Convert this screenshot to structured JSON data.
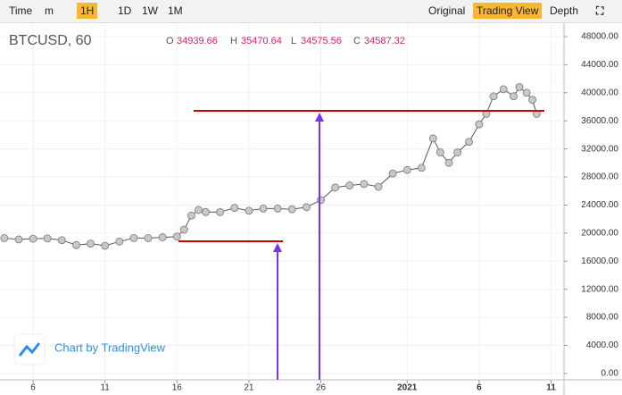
{
  "toolbar": {
    "left": [
      "Time",
      "m",
      "1H",
      "1D",
      "1W",
      "1M"
    ],
    "right": [
      "Original",
      "Trading View",
      "Depth"
    ]
  },
  "legend": {
    "symbol": "BTCUSD, 60",
    "o_label": "O",
    "open": 34939.66,
    "h_label": "H",
    "high": 35470.64,
    "l_label": "L",
    "low": 34575.56,
    "c_label": "C",
    "close": 34587.32
  },
  "watermark": "Chart by TradingView",
  "chart_data": {
    "type": "line",
    "color": "#555555",
    "marker_color": "#c8c8c8",
    "x": [
      4,
      5,
      6,
      7,
      8,
      9,
      10,
      11,
      12,
      13,
      14,
      15,
      16,
      16.5,
      17,
      17.5,
      18,
      19,
      20,
      21,
      22,
      23,
      24,
      25,
      26,
      27,
      28,
      29,
      30,
      31,
      32,
      33,
      33.8,
      34.3,
      34.9,
      35.5,
      36.3,
      37,
      37.5,
      38,
      38.7,
      39.4,
      39.8,
      40.3,
      40.7,
      41
    ],
    "values": [
      19300,
      19100,
      19200,
      19250,
      19000,
      18300,
      18500,
      18200,
      18800,
      19300,
      19300,
      19400,
      19500,
      20500,
      22500,
      23300,
      23000,
      23000,
      23600,
      23200,
      23500,
      23500,
      23400,
      23700,
      24700,
      26500,
      26800,
      27000,
      26600,
      28500,
      29000,
      29300,
      33500,
      31500,
      30000,
      31500,
      33000,
      35500,
      37000,
      39500,
      40500,
      39500,
      40800,
      40000,
      39000,
      37000
    ],
    "xlim": [
      3.7,
      42.9
    ],
    "xticks": [
      6,
      11,
      16,
      21,
      26,
      {
        "value": 32,
        "label": "2021"
      },
      {
        "value": 37,
        "label": "6"
      },
      {
        "value": 42,
        "label": "11"
      }
    ],
    "ylim": [
      -900,
      49650
    ],
    "yticks": [
      {
        "value": 0,
        "label": "0.00"
      },
      {
        "value": 4000,
        "label": "4000.00"
      },
      {
        "value": 8000,
        "label": "8000.00"
      },
      {
        "value": 12000,
        "label": "12000.00"
      },
      {
        "value": 16000,
        "label": "16000.00"
      },
      {
        "value": 20000,
        "label": "20000.00"
      },
      {
        "value": 24000,
        "label": "24000.00"
      },
      {
        "value": 28000,
        "label": "28000.00"
      },
      {
        "value": 32000,
        "label": "32000.00"
      },
      {
        "value": 36000,
        "label": "36000.00"
      },
      {
        "value": 40000,
        "label": "40000.00"
      },
      {
        "value": 44000,
        "label": "44000.00"
      },
      {
        "value": 48000,
        "label": "48000.00"
      }
    ],
    "grid": true
  }
}
